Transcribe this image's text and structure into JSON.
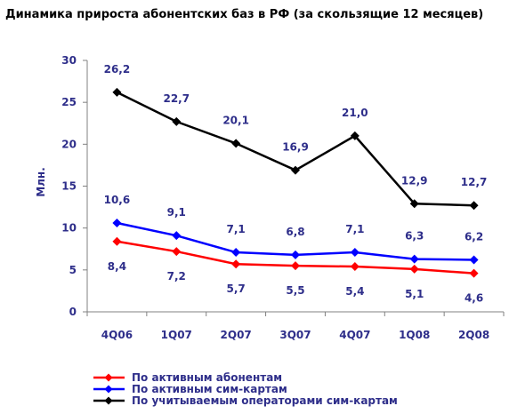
{
  "chart_data": {
    "type": "line",
    "title": "Динамика прироста абонентских баз в РФ (за скользящие 12 месяцев)",
    "ylabel": "Млн.",
    "xlabel": "",
    "categories": [
      "4Q06",
      "1Q07",
      "2Q07",
      "3Q07",
      "4Q07",
      "1Q08",
      "2Q08"
    ],
    "ylim": [
      0,
      30
    ],
    "yticks": [
      0,
      5,
      10,
      15,
      20,
      25,
      30
    ],
    "grid": false,
    "legend_position": "bottom",
    "series": [
      {
        "name": "По активным абонентам",
        "color": "#ff0000",
        "values": [
          8.4,
          7.2,
          5.7,
          5.5,
          5.4,
          5.1,
          4.6
        ],
        "labels": [
          "8,4",
          "7,2",
          "5,7",
          "5,5",
          "5,4",
          "5,1",
          "4,6"
        ],
        "label_position": "below"
      },
      {
        "name": "По активным сим-картам",
        "color": "#0000ff",
        "values": [
          10.6,
          9.1,
          7.1,
          6.8,
          7.1,
          6.3,
          6.2
        ],
        "labels": [
          "10,6",
          "9,1",
          "7,1",
          "6,8",
          "7,1",
          "6,3",
          "6,2"
        ],
        "label_position": "above"
      },
      {
        "name": "По учитываемым операторами сим-картам",
        "color": "#000000",
        "values": [
          26.2,
          22.7,
          20.1,
          16.9,
          21.0,
          12.9,
          12.7
        ],
        "labels": [
          "26,2",
          "22,7",
          "20,1",
          "16,9",
          "21,0",
          "12,9",
          "12,7"
        ],
        "label_position": "above"
      }
    ]
  }
}
